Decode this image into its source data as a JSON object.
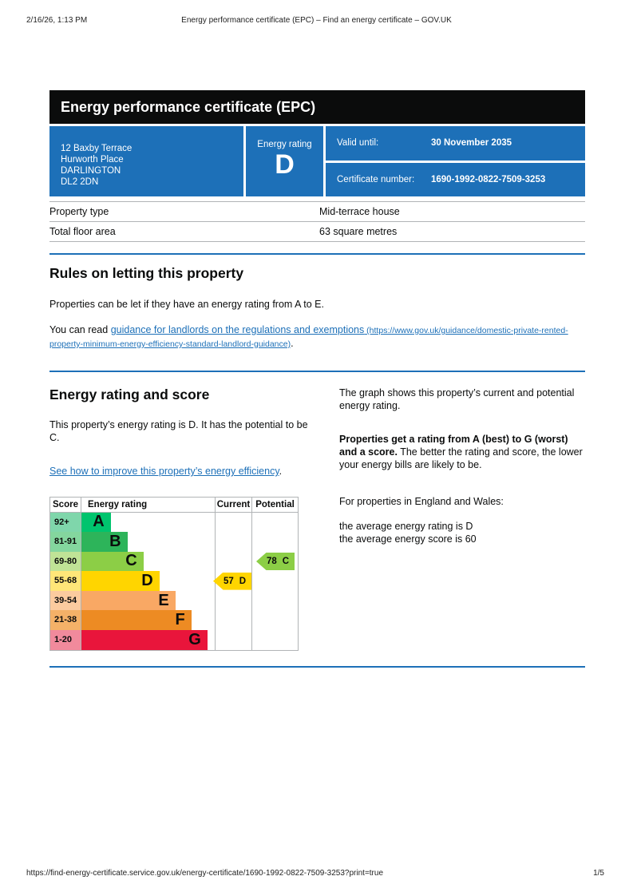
{
  "colors": {
    "panel_blue": "#1d70b8",
    "link_blue": "#1d70b8"
  },
  "print_header": {
    "datetime": "2/16/26, 1:13 PM",
    "title": "Energy performance certificate (EPC) – Find an energy certificate – GOV.UK"
  },
  "banner": {
    "title": "Energy performance certificate (EPC)"
  },
  "summary": {
    "address_lines": [
      "12 Baxby Terrace",
      "Hurworth Place",
      "DARLINGTON",
      "DL2 2DN"
    ],
    "energy_rating_label": "Energy rating",
    "energy_rating": "D",
    "valid_until_label": "Valid until:",
    "valid_until": "30 November 2035",
    "certificate_number_label": "Certificate number:",
    "certificate_number": "1690-1992-0822-7509-3253"
  },
  "property_table": {
    "rows": [
      {
        "label": "Property type",
        "value": "Mid-terrace house"
      },
      {
        "label": "Total floor area",
        "value": "63 square metres"
      }
    ]
  },
  "rules_section": {
    "heading": "Rules on letting this property",
    "para1": "Properties can be let if they have an energy rating from A to E.",
    "para2_prefix": "You can read ",
    "link_text": "guidance for landlords on the regulations and exemptions",
    "link_url_suffix": " (https://www.gov.uk/guidance/domestic-private-rented-property-minimum-energy-efficiency-standard-landlord-guidance)",
    "para2_suffix": "."
  },
  "rating_section": {
    "heading": "Energy rating and score",
    "para1": "This property’s energy rating is D. It has the potential to be C.",
    "link_text": "See how to improve this property’s energy efficiency",
    "link_suffix": ".",
    "right_para1": "The graph shows this property’s current and potential energy rating.",
    "right_para2_bold": "Properties get a rating from A (best) to G (worst) and a score.",
    "right_para2_rest": " The better the rating and score, the lower your energy bills are likely to be.",
    "right_para3": "For properties in England and Wales:",
    "right_line1": "the average energy rating is D",
    "right_line2": "the average energy score is 60"
  },
  "chart_data": {
    "type": "epc-rating-chart",
    "title": "Energy rating and score graph",
    "headers": {
      "score": "Score",
      "rating": "Energy rating",
      "current": "Current",
      "potential": "Potential"
    },
    "bands": [
      {
        "score": "92+",
        "letter": "A",
        "color": "#00c46e",
        "tint": "#7fd6ab",
        "width_pct": 22
      },
      {
        "score": "81-91",
        "letter": "B",
        "color": "#2db45a",
        "tint": "#84d69e",
        "width_pct": 34.5
      },
      {
        "score": "69-80",
        "letter": "C",
        "color": "#8cce46",
        "tint": "#c0e396",
        "width_pct": 46.5
      },
      {
        "score": "55-68",
        "letter": "D",
        "color": "#ffd500",
        "tint": "#ffe678",
        "width_pct": 58.5
      },
      {
        "score": "39-54",
        "letter": "E",
        "color": "#f9a864",
        "tint": "#fbcb9f",
        "width_pct": 70.5
      },
      {
        "score": "21-38",
        "letter": "F",
        "color": "#ed8b23",
        "tint": "#f4b168",
        "width_pct": 82.5
      },
      {
        "score": "1-20",
        "letter": "G",
        "color": "#e9153b",
        "tint": "#f18a9c",
        "width_pct": 94.5
      }
    ],
    "current": {
      "value": 57,
      "band": "D",
      "color": "#ffd500"
    },
    "potential": {
      "value": 78,
      "band": "C",
      "color": "#8cce46"
    }
  },
  "print_footer": {
    "url": "https://find-energy-certificate.service.gov.uk/energy-certificate/1690-1992-0822-7509-3253?print=true",
    "page": "1/5"
  }
}
